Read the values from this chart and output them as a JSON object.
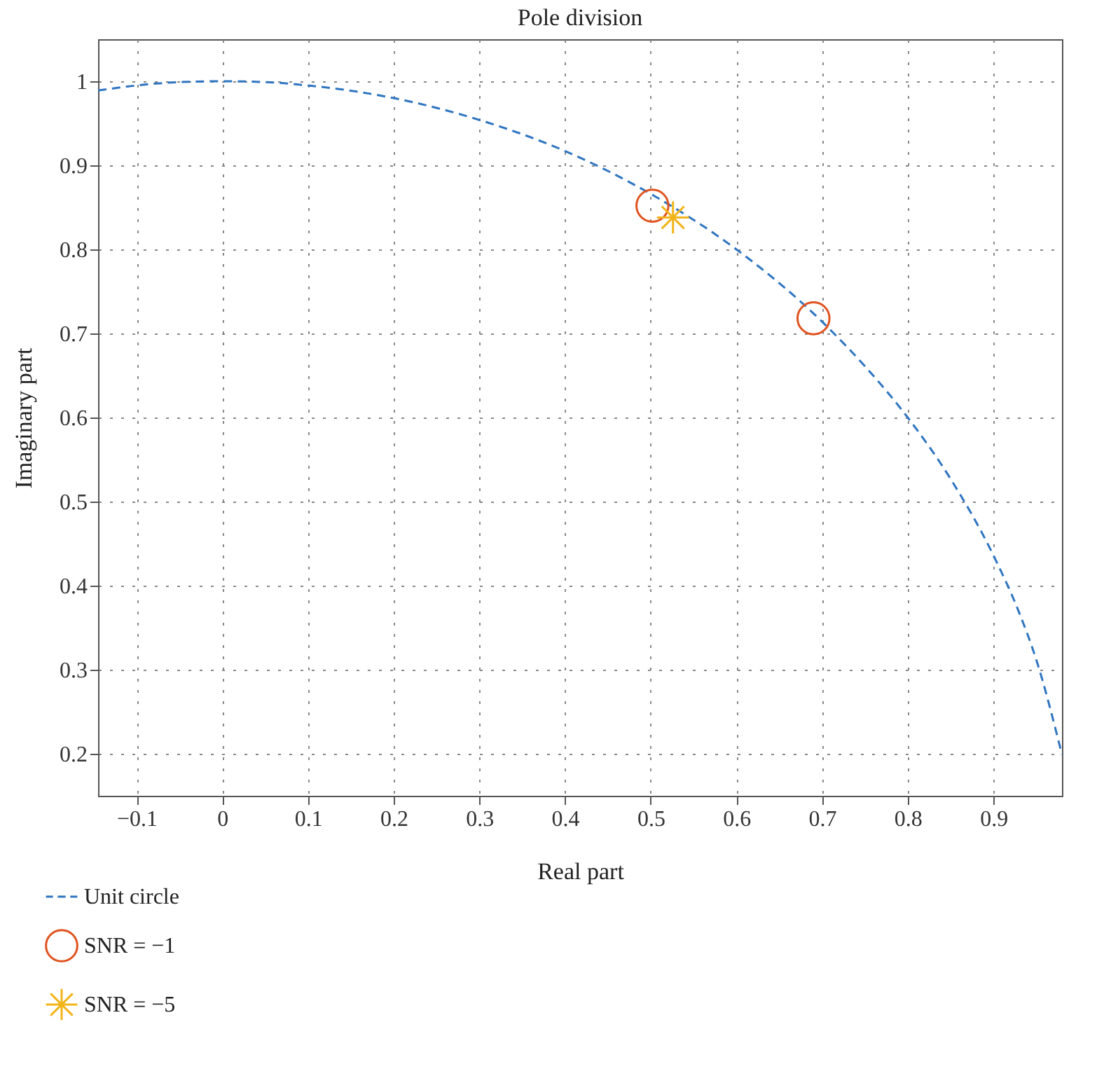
{
  "chart_data": {
    "type": "scatter",
    "title": "Pole division",
    "xlabel": "Real part",
    "ylabel": "Imaginary part",
    "xlim": [
      -0.145,
      0.98
    ],
    "ylim": [
      0.15,
      1.05
    ],
    "xticks": [
      -0.1,
      0,
      0.1,
      0.2,
      0.3,
      0.4,
      0.5,
      0.6,
      0.7,
      0.8,
      0.9
    ],
    "yticks": [
      0.2,
      0.3,
      0.4,
      0.5,
      0.6,
      0.7,
      0.8,
      0.9,
      1
    ],
    "grid": true,
    "legend": "bottom left",
    "series": [
      {
        "name": "Unit circle",
        "type": "line",
        "line_style": "dashed",
        "marker": "none",
        "color": "#2f75c0",
        "x": [
          -0.145,
          -0.1,
          -0.05,
          0,
          0.05,
          0.1,
          0.2,
          0.3,
          0.4,
          0.5,
          0.6,
          0.7,
          0.75,
          0.8,
          0.85,
          0.9,
          0.93,
          0.95,
          0.98
        ],
        "values": [
          0.989,
          0.995,
          0.999,
          1,
          0.999,
          0.995,
          0.98,
          0.954,
          0.917,
          0.866,
          0.8,
          0.714,
          0.661,
          0.6,
          0.527,
          0.436,
          0.368,
          0.312,
          0.199
        ]
      },
      {
        "name": "SNR = −1",
        "marker": "circle",
        "color": "#e0521e",
        "x": [
          0.502,
          0.69
        ],
        "values": [
          0.852,
          0.718
        ]
      },
      {
        "name": "SNR = −5",
        "marker": "cross",
        "color": "#f2b418",
        "x": [
          0.526
        ],
        "values": [
          0.838
        ]
      }
    ]
  }
}
